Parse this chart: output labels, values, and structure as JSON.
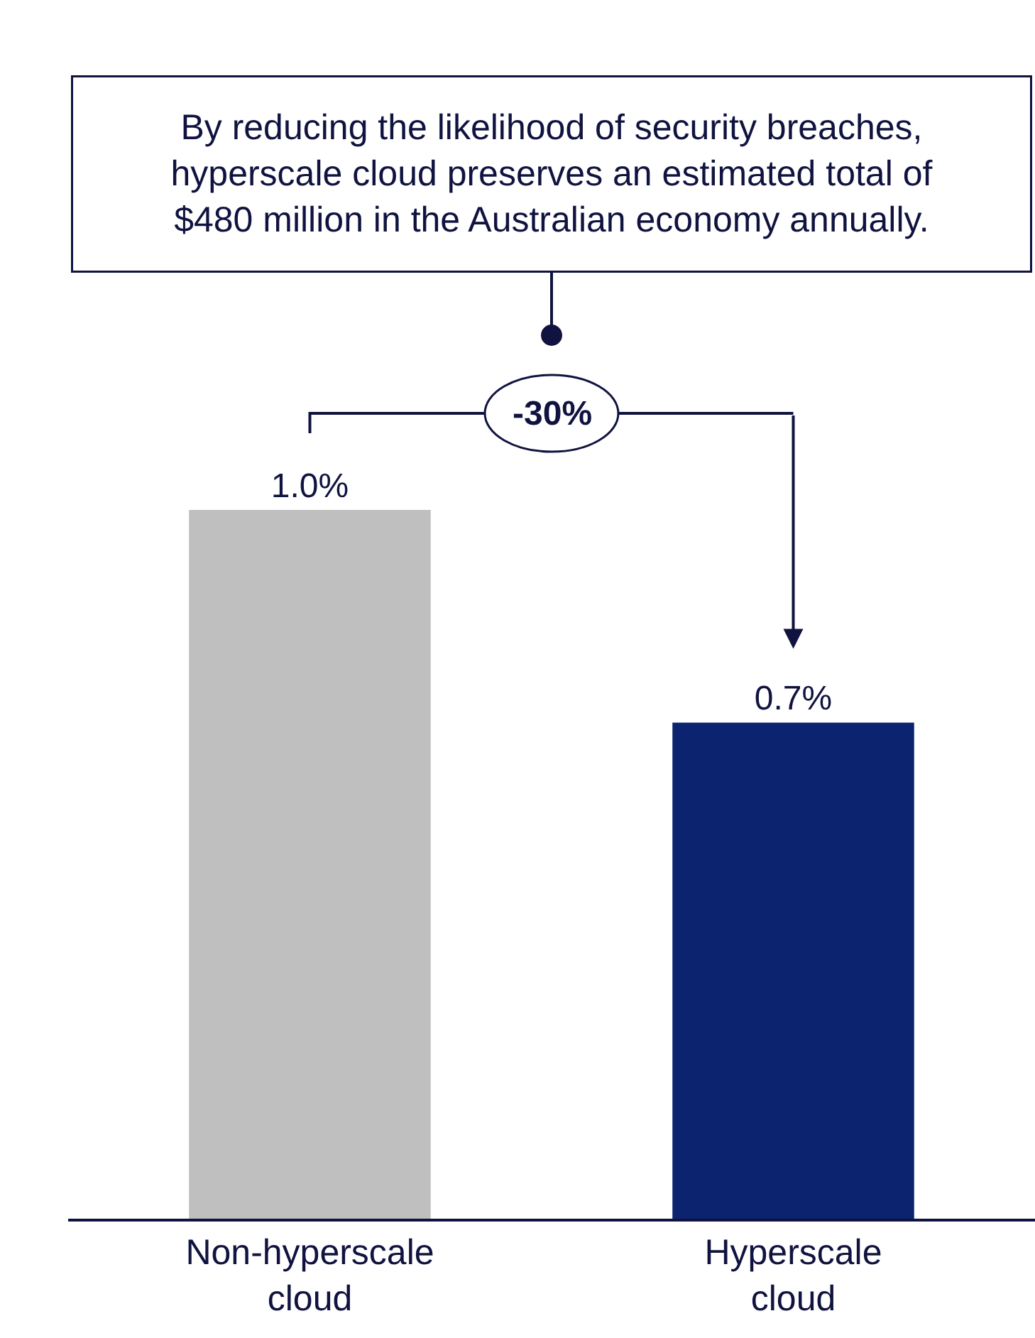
{
  "chart_data": {
    "type": "bar",
    "categories": [
      "Non-hyperscale cloud",
      "Hyperscale cloud"
    ],
    "values": [
      1.0,
      0.7
    ],
    "colors": [
      "#bfbfbf",
      "#0c2470"
    ],
    "value_labels": [
      "1.0%",
      "0.7%"
    ],
    "tick_labels": "x",
    "annotations": [
      "By reducing the likelihood of security breaches, hyperscale cloud preserves an estimated total of $480 million in the Australian economy annually.",
      "-30%"
    ]
  }
}
